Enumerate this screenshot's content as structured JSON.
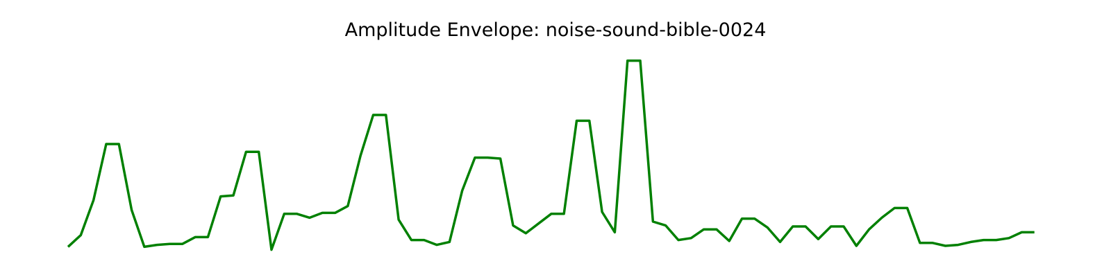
{
  "chart_data": {
    "type": "line",
    "title": "Amplitude Envelope: noise-sound-bible-0024",
    "xlabel": "",
    "ylabel": "",
    "axes_visible": false,
    "grid": false,
    "x_range": [
      0,
      77
    ],
    "ylim": [
      0,
      1
    ],
    "series": [
      {
        "color": "#008000",
        "values": [
          0.02,
          0.08,
          0.26,
          0.55,
          0.55,
          0.21,
          0.02,
          0.03,
          0.035,
          0.035,
          0.07,
          0.07,
          0.28,
          0.285,
          0.51,
          0.51,
          0.005,
          0.19,
          0.19,
          0.17,
          0.195,
          0.195,
          0.23,
          0.49,
          0.7,
          0.7,
          0.16,
          0.055,
          0.055,
          0.03,
          0.045,
          0.31,
          0.48,
          0.48,
          0.475,
          0.13,
          0.09,
          0.14,
          0.19,
          0.19,
          0.67,
          0.67,
          0.2,
          0.095,
          0.98,
          0.98,
          0.15,
          0.13,
          0.055,
          0.065,
          0.11,
          0.11,
          0.05,
          0.165,
          0.165,
          0.12,
          0.045,
          0.125,
          0.125,
          0.06,
          0.125,
          0.125,
          0.025,
          0.11,
          0.17,
          0.22,
          0.22,
          0.04,
          0.04,
          0.025,
          0.03,
          0.045,
          0.055,
          0.055,
          0.065,
          0.095,
          0.095
        ]
      }
    ]
  }
}
